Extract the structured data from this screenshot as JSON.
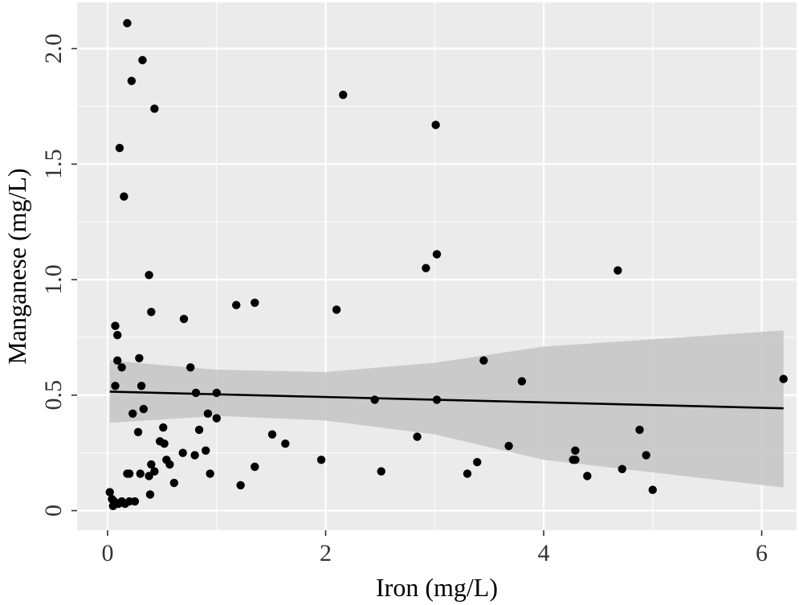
{
  "chart_data": {
    "type": "scatter",
    "xlabel": "Iron (mg/L)",
    "ylabel": "Manganese (mg/L)",
    "xlim": [
      -0.28,
      6.32
    ],
    "ylim": [
      -0.085,
      2.2
    ],
    "x_ticks": [
      0,
      2,
      4,
      6
    ],
    "x_tick_labels": [
      "0",
      "2",
      "4",
      "6"
    ],
    "y_ticks": [
      0,
      0.5,
      1.0,
      1.5,
      2.0
    ],
    "y_tick_labels": [
      "0",
      "0.5",
      "1.0",
      "1.5",
      "2.0"
    ],
    "x_minor_ticks": [
      1,
      3,
      5
    ],
    "y_minor_ticks": [
      0.25,
      0.75,
      1.25,
      1.75
    ],
    "grid": true,
    "colors": {
      "panel": "#ebebeb",
      "grid": "#ffffff",
      "point": "#000000",
      "band": "#c4c4c4",
      "line": "#000000"
    },
    "series": [
      {
        "values": [
          [
            0.18,
            2.11
          ],
          [
            0.32,
            1.95
          ],
          [
            0.22,
            1.86
          ],
          [
            0.43,
            1.74
          ],
          [
            0.11,
            1.57
          ],
          [
            0.15,
            1.36
          ],
          [
            0.38,
            1.02
          ],
          [
            0.4,
            0.86
          ],
          [
            0.7,
            0.83
          ],
          [
            0.07,
            0.8
          ],
          [
            0.09,
            0.76
          ],
          [
            0.09,
            0.65
          ],
          [
            0.13,
            0.62
          ],
          [
            0.29,
            0.66
          ],
          [
            0.76,
            0.62
          ],
          [
            0.07,
            0.54
          ],
          [
            0.31,
            0.54
          ],
          [
            0.81,
            0.51
          ],
          [
            1.0,
            0.51
          ],
          [
            0.23,
            0.42
          ],
          [
            0.33,
            0.44
          ],
          [
            0.92,
            0.42
          ],
          [
            1.0,
            0.4
          ],
          [
            0.84,
            0.35
          ],
          [
            0.28,
            0.34
          ],
          [
            0.51,
            0.36
          ],
          [
            0.48,
            0.3
          ],
          [
            0.52,
            0.29
          ],
          [
            0.69,
            0.25
          ],
          [
            0.8,
            0.24
          ],
          [
            0.9,
            0.26
          ],
          [
            0.54,
            0.22
          ],
          [
            0.57,
            0.2
          ],
          [
            0.4,
            0.2
          ],
          [
            0.38,
            0.15
          ],
          [
            0.43,
            0.17
          ],
          [
            0.3,
            0.16
          ],
          [
            0.18,
            0.16
          ],
          [
            0.2,
            0.16
          ],
          [
            0.61,
            0.12
          ],
          [
            0.39,
            0.07
          ],
          [
            0.94,
            0.16
          ],
          [
            0.02,
            0.08
          ],
          [
            0.04,
            0.05
          ],
          [
            0.05,
            0.02
          ],
          [
            0.06,
            0.04
          ],
          [
            0.1,
            0.03
          ],
          [
            0.13,
            0.04
          ],
          [
            0.16,
            0.03
          ],
          [
            0.2,
            0.04
          ],
          [
            0.25,
            0.04
          ],
          [
            1.18,
            0.89
          ],
          [
            1.35,
            0.9
          ],
          [
            1.22,
            0.11
          ],
          [
            1.35,
            0.19
          ],
          [
            1.51,
            0.33
          ],
          [
            1.63,
            0.29
          ],
          [
            1.96,
            0.22
          ],
          [
            2.1,
            0.87
          ],
          [
            2.16,
            1.8
          ],
          [
            2.45,
            0.48
          ],
          [
            2.51,
            0.17
          ],
          [
            2.84,
            0.32
          ],
          [
            2.92,
            1.05
          ],
          [
            3.01,
            1.67
          ],
          [
            3.02,
            1.11
          ],
          [
            3.02,
            0.48
          ],
          [
            3.3,
            0.16
          ],
          [
            3.39,
            0.21
          ],
          [
            3.45,
            0.65
          ],
          [
            3.68,
            0.28
          ],
          [
            3.8,
            0.56
          ],
          [
            4.27,
            0.22
          ],
          [
            4.29,
            0.26
          ],
          [
            4.29,
            0.22
          ],
          [
            4.4,
            0.15
          ],
          [
            4.68,
            1.04
          ],
          [
            4.72,
            0.18
          ],
          [
            4.88,
            0.35
          ],
          [
            4.94,
            0.24
          ],
          [
            5.0,
            0.09
          ],
          [
            6.2,
            0.57
          ]
        ]
      }
    ],
    "fit": {
      "type": "line",
      "x": [
        0.02,
        6.2
      ],
      "y": [
        0.515,
        0.443
      ],
      "band_upper": [
        0.65,
        0.61,
        0.6,
        0.64,
        0.71,
        0.78
      ],
      "band_lower": [
        0.38,
        0.41,
        0.39,
        0.33,
        0.22,
        0.1
      ],
      "band_x": [
        0.02,
        1.0,
        2.0,
        3.0,
        4.0,
        6.2
      ]
    }
  }
}
